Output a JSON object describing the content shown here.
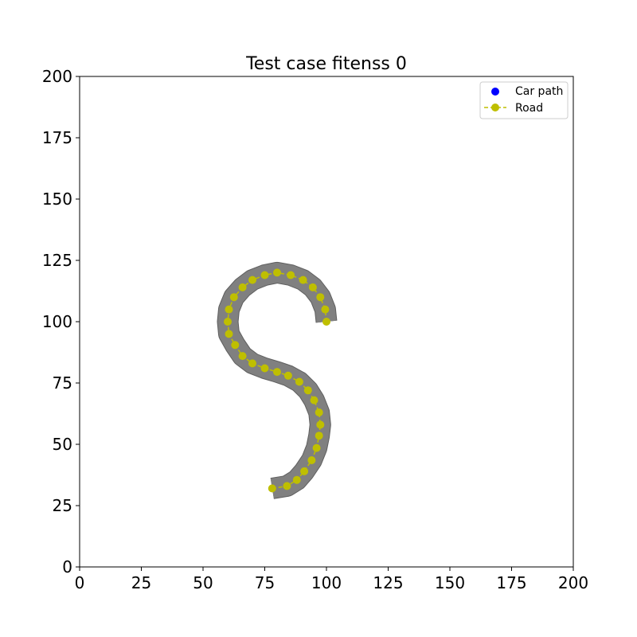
{
  "chart_data": {
    "type": "line",
    "title": "Test case fitenss 0",
    "xlabel": "",
    "ylabel": "",
    "xlim": [
      0,
      200
    ],
    "ylim": [
      0,
      200
    ],
    "xticks": [
      0,
      25,
      50,
      75,
      100,
      125,
      150,
      175,
      200
    ],
    "yticks": [
      0,
      25,
      50,
      75,
      100,
      125,
      150,
      175,
      200
    ],
    "xtick_labels": [
      "0",
      "25",
      "50",
      "75",
      "100",
      "125",
      "150",
      "175",
      "200"
    ],
    "ytick_labels": [
      "0",
      "25",
      "50",
      "75",
      "100",
      "125",
      "150",
      "175",
      "200"
    ],
    "grid": false,
    "legend_position": "top-right",
    "series": [
      {
        "name": "Car path",
        "style": "markers",
        "color": "#0000ff",
        "x": [],
        "y": []
      },
      {
        "name": "Road",
        "style": "dashed-line-with-markers",
        "color": "#bfbf00",
        "x": [
          100,
          99.5,
          97.5,
          94.5,
          90.5,
          85.5,
          80,
          75,
          70,
          66,
          62.5,
          60.5,
          60,
          60.5,
          63,
          66,
          70,
          75,
          80,
          84.5,
          89,
          92.5,
          95,
          97,
          97.5,
          97,
          96,
          94,
          91,
          88,
          84,
          78
        ],
        "y": [
          100,
          105,
          110,
          114,
          117,
          119,
          120,
          119,
          117,
          114,
          110,
          105,
          100,
          95,
          90.5,
          86,
          83,
          81,
          79.5,
          78,
          75.5,
          72,
          68,
          63,
          58,
          53.5,
          48.5,
          43.5,
          39,
          35.5,
          33,
          32
        ]
      }
    ],
    "road_polygon_color": "#808080"
  }
}
